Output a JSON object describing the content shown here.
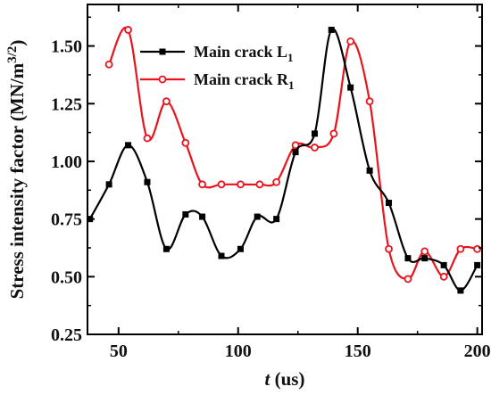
{
  "chart_data": {
    "type": "line",
    "title": "",
    "xlabel": {
      "italic": "t",
      "rest": " (us)"
    },
    "ylabel": {
      "main": "Stress intensity factor (MN/m",
      "sup": "3/2",
      "close": ")"
    },
    "xlim": [
      37,
      202
    ],
    "ylim": [
      0.25,
      1.68
    ],
    "xticks": [
      50,
      100,
      150,
      200
    ],
    "xtick_labels": [
      "50",
      "100",
      "150",
      "200"
    ],
    "yticks": [
      0.25,
      0.5,
      0.75,
      1.0,
      1.25,
      1.5
    ],
    "ytick_labels": [
      "0.25",
      "0.50",
      "0.75",
      "1.00",
      "1.25",
      "1.50"
    ],
    "legend_position": "top-center",
    "series": [
      {
        "name": "Main crack L1",
        "name_main": "Main crack L",
        "name_sub": "1",
        "color": "#000000",
        "marker": "square",
        "x": [
          38,
          46,
          54,
          62,
          70,
          78,
          85,
          93,
          101,
          108,
          116,
          124,
          132,
          139,
          147,
          155,
          163,
          171,
          178,
          186,
          193,
          200
        ],
        "y": [
          0.75,
          0.9,
          1.07,
          0.91,
          0.62,
          0.77,
          0.76,
          0.59,
          0.62,
          0.76,
          0.75,
          1.04,
          1.12,
          1.57,
          1.32,
          0.96,
          0.82,
          0.58,
          0.58,
          0.55,
          0.44,
          0.55
        ]
      },
      {
        "name": "Main crack R1",
        "name_main": "Main crack R",
        "name_sub": "1",
        "color": "#e8141d",
        "marker": "circle",
        "x": [
          46,
          54,
          62,
          70,
          78,
          85,
          93,
          101,
          109,
          116,
          124,
          132,
          140,
          147,
          155,
          163,
          171,
          178,
          186,
          193,
          200
        ],
        "y": [
          1.42,
          1.57,
          1.1,
          1.26,
          1.08,
          0.9,
          0.9,
          0.9,
          0.9,
          0.91,
          1.07,
          1.06,
          1.12,
          1.52,
          1.26,
          0.62,
          0.49,
          0.61,
          0.5,
          0.62,
          0.62
        ]
      }
    ]
  }
}
